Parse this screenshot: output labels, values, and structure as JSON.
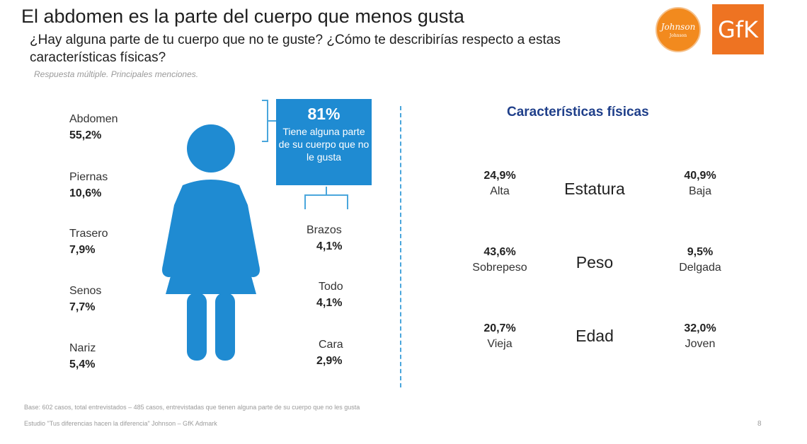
{
  "header": {
    "title": "El abdomen es la parte del cuerpo que menos gusta",
    "subtitle": "¿Hay alguna parte de tu cuerpo que no te guste? ¿Cómo te describirías respecto a estas características físicas?",
    "note": "Respuesta múltiple.  Principales menciones."
  },
  "logos": {
    "johnson": "Johnson",
    "johnson_small": "Johnson",
    "gfk": "GfK"
  },
  "colors": {
    "figure": "#1f8bd2",
    "accent_blue": "#1f3f8a",
    "orange": "#ee7322"
  },
  "chart_data": [
    {
      "type": "table",
      "title": "",
      "subtitle": "Tiene alguna parte de su cuerpo que no le gusta",
      "headline_value": "81%",
      "headline_text": "Tiene alguna parte de su cuerpo que no le gusta",
      "body_parts_left": [
        {
          "name": "Abdomen",
          "value": "55,2%"
        },
        {
          "name": "Piernas",
          "value": "10,6%"
        },
        {
          "name": "Trasero",
          "value": "7,9%"
        },
        {
          "name": "Senos",
          "value": "7,7%"
        },
        {
          "name": "Nariz",
          "value": "5,4%"
        }
      ],
      "body_parts_right": [
        {
          "name": "Brazos",
          "value": "4,1%"
        },
        {
          "name": "Todo",
          "value": "4,1%"
        },
        {
          "name": "Cara",
          "value": "2,9%"
        }
      ]
    },
    {
      "type": "table",
      "title": "Características físicas",
      "rows": [
        {
          "characteristic": "Estatura",
          "left_label": "Alta",
          "left_value": "24,9%",
          "right_label": "Baja",
          "right_value": "40,9%"
        },
        {
          "characteristic": "Peso",
          "left_label": "Sobrepeso",
          "left_value": "43,6%",
          "right_label": "Delgada",
          "right_value": "9,5%"
        },
        {
          "characteristic": "Edad",
          "left_label": "Vieja",
          "left_value": "20,7%",
          "right_label": "Joven",
          "right_value": "32,0%"
        }
      ]
    }
  ],
  "footer": {
    "base": "Base: 602 casos, total entrevistados – 485 casos, entrevistadas que tienen alguna parte de su cuerpo que no les gusta",
    "study": "Estudio \"Tus diferencias hacen la diferencia\" Johnson – GfK Admark",
    "page": "8"
  }
}
